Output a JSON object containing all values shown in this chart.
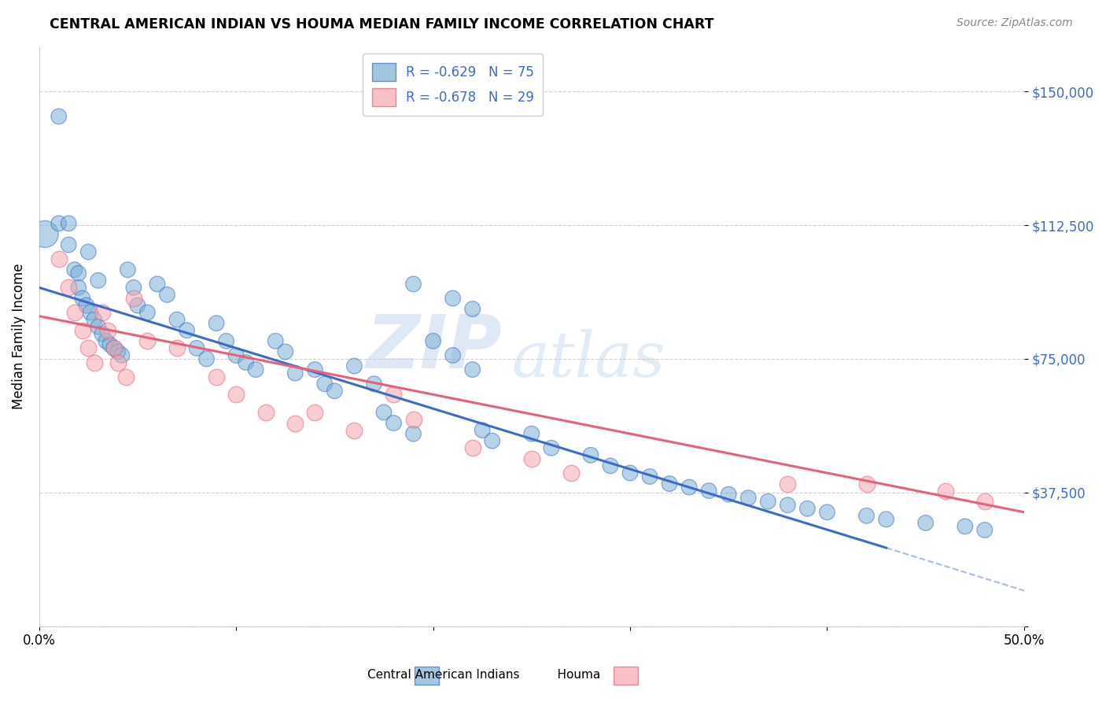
{
  "title": "CENTRAL AMERICAN INDIAN VS HOUMA MEDIAN FAMILY INCOME CORRELATION CHART",
  "source": "Source: ZipAtlas.com",
  "ylabel": "Median Family Income",
  "xlim": [
    0.0,
    0.5
  ],
  "ylim": [
    0,
    162500
  ],
  "yticks": [
    0,
    37500,
    75000,
    112500,
    150000
  ],
  "ytick_labels": [
    "",
    "$37,500",
    "$75,000",
    "$112,500",
    "$150,000"
  ],
  "xticks": [
    0.0,
    0.1,
    0.2,
    0.3,
    0.4,
    0.5
  ],
  "xtick_labels": [
    "0.0%",
    "",
    "",
    "",
    "",
    "50.0%"
  ],
  "legend_r1": "R = -0.629",
  "legend_n1": "N = 75",
  "legend_r2": "R = -0.678",
  "legend_n2": "N = 29",
  "blue_color": "#7BAFD4",
  "pink_color": "#F4A7B0",
  "line_blue": "#3B6CC7",
  "line_pink": "#E8607A",
  "watermark_zip": "ZIP",
  "watermark_atlas": "atlas",
  "blue_scatter_x": [
    0.003,
    0.01,
    0.01,
    0.015,
    0.015,
    0.018,
    0.02,
    0.02,
    0.022,
    0.024,
    0.025,
    0.026,
    0.028,
    0.03,
    0.03,
    0.032,
    0.034,
    0.036,
    0.038,
    0.04,
    0.042,
    0.045,
    0.048,
    0.05,
    0.055,
    0.06,
    0.065,
    0.07,
    0.075,
    0.08,
    0.085,
    0.09,
    0.095,
    0.1,
    0.105,
    0.11,
    0.12,
    0.125,
    0.13,
    0.14,
    0.145,
    0.15,
    0.16,
    0.17,
    0.175,
    0.18,
    0.19,
    0.2,
    0.21,
    0.22,
    0.225,
    0.23,
    0.25,
    0.26,
    0.28,
    0.29,
    0.3,
    0.31,
    0.32,
    0.33,
    0.34,
    0.35,
    0.36,
    0.37,
    0.38,
    0.39,
    0.4,
    0.42,
    0.43,
    0.45,
    0.47,
    0.48,
    0.19,
    0.21,
    0.22
  ],
  "blue_scatter_y": [
    110000,
    143000,
    113000,
    113000,
    107000,
    100000,
    99000,
    95000,
    92000,
    90000,
    105000,
    88000,
    86000,
    84000,
    97000,
    82000,
    80000,
    79000,
    78000,
    77000,
    76000,
    100000,
    95000,
    90000,
    88000,
    96000,
    93000,
    86000,
    83000,
    78000,
    75000,
    85000,
    80000,
    76000,
    74000,
    72000,
    80000,
    77000,
    71000,
    72000,
    68000,
    66000,
    73000,
    68000,
    60000,
    57000,
    54000,
    80000,
    76000,
    72000,
    55000,
    52000,
    54000,
    50000,
    48000,
    45000,
    43000,
    42000,
    40000,
    39000,
    38000,
    37000,
    36000,
    35000,
    34000,
    33000,
    32000,
    31000,
    30000,
    29000,
    28000,
    27000,
    96000,
    92000,
    89000
  ],
  "blue_scatter_s": [
    600,
    200,
    200,
    200,
    200,
    200,
    200,
    200,
    200,
    200,
    200,
    200,
    200,
    200,
    200,
    200,
    200,
    200,
    200,
    200,
    200,
    200,
    200,
    200,
    200,
    200,
    200,
    200,
    200,
    200,
    200,
    200,
    200,
    200,
    200,
    200,
    200,
    200,
    200,
    200,
    200,
    200,
    200,
    200,
    200,
    200,
    200,
    200,
    200,
    200,
    200,
    200,
    200,
    200,
    200,
    200,
    200,
    200,
    200,
    200,
    200,
    200,
    200,
    200,
    200,
    200,
    200,
    200,
    200,
    200,
    200,
    200,
    200,
    200,
    200
  ],
  "pink_scatter_x": [
    0.01,
    0.015,
    0.018,
    0.022,
    0.025,
    0.028,
    0.032,
    0.035,
    0.038,
    0.04,
    0.044,
    0.048,
    0.055,
    0.07,
    0.09,
    0.1,
    0.115,
    0.13,
    0.14,
    0.16,
    0.18,
    0.19,
    0.22,
    0.25,
    0.27,
    0.38,
    0.42,
    0.46,
    0.48
  ],
  "pink_scatter_y": [
    103000,
    95000,
    88000,
    83000,
    78000,
    74000,
    88000,
    83000,
    78000,
    74000,
    70000,
    92000,
    80000,
    78000,
    70000,
    65000,
    60000,
    57000,
    60000,
    55000,
    65000,
    58000,
    50000,
    47000,
    43000,
    40000,
    40000,
    38000,
    35000
  ],
  "blue_line_x": [
    0.0,
    0.43
  ],
  "blue_line_y": [
    95000,
    22000
  ],
  "pink_line_x": [
    0.0,
    0.5
  ],
  "pink_line_y": [
    87000,
    32000
  ],
  "dash_line_x": [
    0.43,
    0.5
  ],
  "dash_line_y": [
    22000,
    10000
  ],
  "grid_color": "#CCCCCC",
  "spine_color": "#CCCCCC"
}
